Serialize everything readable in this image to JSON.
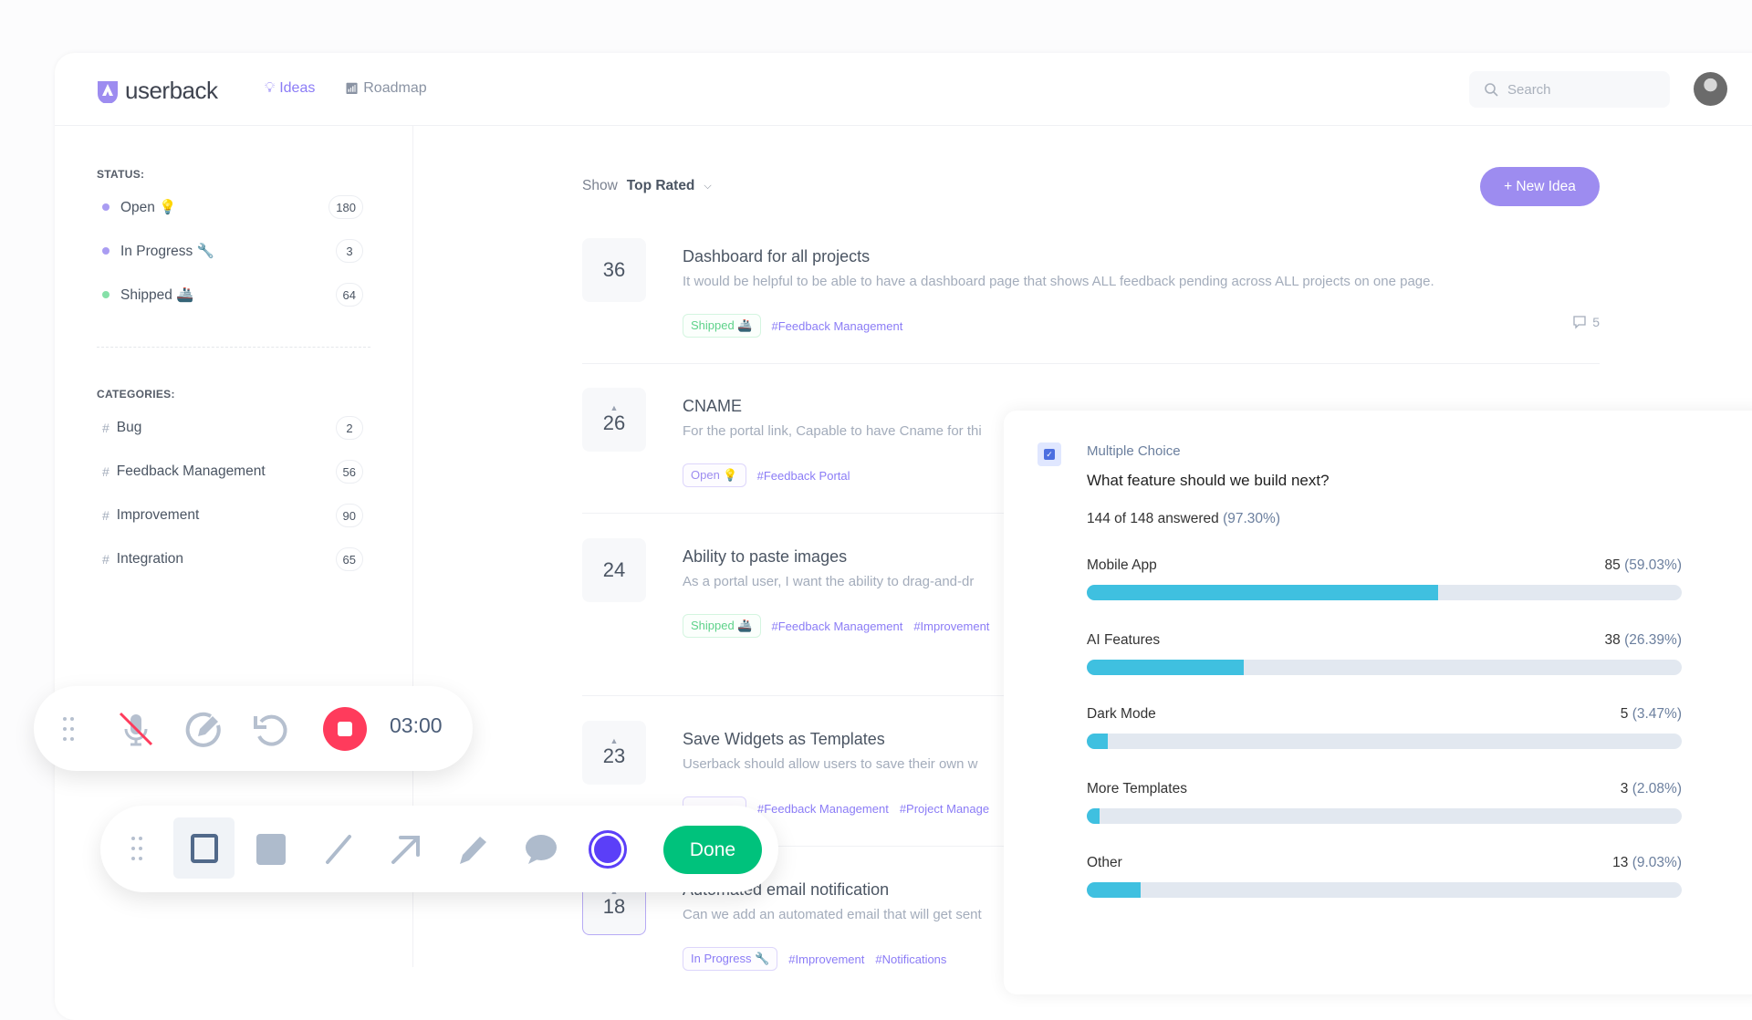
{
  "header": {
    "logo": "userback",
    "nav": [
      {
        "label": "Ideas",
        "active": true
      },
      {
        "label": "Roadmap",
        "active": false
      }
    ],
    "search_placeholder": "Search"
  },
  "sidebar": {
    "status_title": "STATUS:",
    "statuses": [
      {
        "label": "Open 💡",
        "count": "180",
        "color": "#a99cf2"
      },
      {
        "label": "In Progress 🔧",
        "count": "3",
        "color": "#a99cf2"
      },
      {
        "label": "Shipped 🚢",
        "count": "64",
        "color": "#86e0a8"
      }
    ],
    "categories_title": "CATEGORIES:",
    "categories": [
      {
        "label": "Bug",
        "count": "2"
      },
      {
        "label": "Feedback Management",
        "count": "56"
      },
      {
        "label": "Improvement",
        "count": "90"
      },
      {
        "label": "Integration",
        "count": "65"
      }
    ]
  },
  "main": {
    "show_label": "Show",
    "sort": "Top Rated",
    "new_idea": "+ New Idea",
    "ideas": [
      {
        "votes": "36",
        "title": "Dashboard for all projects",
        "desc": "It would be helpful to be able to have a dashboard page that shows ALL feedback pending across ALL projects on one page.",
        "status": "Shipped 🚢",
        "status_type": "shipped",
        "tags": [
          "#Feedback Management"
        ],
        "comments": "5",
        "voted": false
      },
      {
        "votes": "26",
        "title": "CNAME",
        "desc": "For the portal link, Capable to have Cname for thi",
        "status": "Open 💡",
        "status_type": "open",
        "tags": [
          "#Feedback Portal"
        ],
        "voted": true
      },
      {
        "votes": "24",
        "title": "Ability to paste images",
        "desc": "As a portal user, I want the ability to drag-and-dr",
        "status": "Shipped 🚢",
        "status_type": "shipped",
        "tags": [
          "#Feedback Management",
          "#Improvement"
        ],
        "voted": false
      },
      {
        "votes": "23",
        "title": "Save Widgets as Templates",
        "desc": "Userback should allow users to save their own w",
        "status": "",
        "status_type": "open",
        "tags": [
          "#Feedback Management",
          "#Project Manage"
        ],
        "voted": true
      },
      {
        "votes": "18",
        "title": "Automated email notification",
        "desc": "Can we add an automated email that will get sent",
        "status": "In Progress 🔧",
        "status_type": "progress",
        "tags": [
          "#Improvement",
          "#Notifications"
        ],
        "voted": true,
        "selected": true
      }
    ]
  },
  "poll": {
    "type": "Multiple Choice",
    "question": "What feature should we build next?",
    "answered": "144 of 148 answered",
    "answered_pct": "(97.30%)",
    "options": [
      {
        "label": "Mobile App",
        "count": "85",
        "pct": "(59.03%)",
        "value": 59.03
      },
      {
        "label": "AI Features",
        "count": "38",
        "pct": "(26.39%)",
        "value": 26.39
      },
      {
        "label": "Dark Mode",
        "count": "5",
        "pct": "(3.47%)",
        "value": 3.47
      },
      {
        "label": "More Templates",
        "count": "3",
        "pct": "(2.08%)",
        "value": 2.08
      },
      {
        "label": "Other",
        "count": "13",
        "pct": "(9.03%)",
        "value": 9.03
      }
    ],
    "bar_color": "#3fc0e0"
  },
  "recorder": {
    "timer": "03:00",
    "stop_color": "#ff3b5c"
  },
  "draw_toolbar": {
    "done": "Done",
    "done_color": "#00c27c",
    "current_color": "#5b3ff8"
  }
}
